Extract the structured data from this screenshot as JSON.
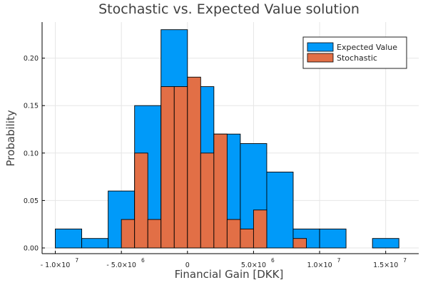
{
  "chart_data": {
    "type": "bar",
    "title": "Stochastic vs. Expected Value solution",
    "xlabel": "Financial Gain [DKK]",
    "ylabel": "Probability",
    "xlim": [
      -11000000,
      17500000
    ],
    "ylim": [
      -0.006,
      0.238
    ],
    "grid": true,
    "legend_position": "top-right",
    "x_ticks": [
      {
        "value": -10000000,
        "mantissa": "- 1.0×10",
        "exponent": "7"
      },
      {
        "value": -5000000,
        "mantissa": "- 5.0×10",
        "exponent": "6"
      },
      {
        "value": 0,
        "mantissa": "0",
        "exponent": ""
      },
      {
        "value": 5000000,
        "mantissa": "5.0×10",
        "exponent": "6"
      },
      {
        "value": 10000000,
        "mantissa": "1.0×10",
        "exponent": "7"
      },
      {
        "value": 15000000,
        "mantissa": "1.5×10",
        "exponent": "7"
      }
    ],
    "y_ticks": [
      {
        "value": 0,
        "label": "0.00"
      },
      {
        "value": 0.05,
        "label": "0.05"
      },
      {
        "value": 0.1,
        "label": "0.10"
      },
      {
        "value": 0.15,
        "label": "0.15"
      },
      {
        "value": 0.2,
        "label": "0.20"
      }
    ],
    "series": [
      {
        "name": "Expected Value",
        "color": "#009af9",
        "bin_edges": [
          -10000000,
          -8000000,
          -6000000,
          -4000000,
          -2000000,
          0,
          2000000,
          4000000,
          6000000,
          8000000,
          10000000,
          12000000,
          14000000,
          16000000
        ],
        "values": [
          0.02,
          0.01,
          0.06,
          0.15,
          0.23,
          0.17,
          0.12,
          0.11,
          0.08,
          0.02,
          0.02,
          0.0,
          0.01
        ]
      },
      {
        "name": "Stochastic",
        "color": "#e26f46",
        "bin_edges": [
          -5000000,
          -4000000,
          -3000000,
          -2000000,
          -1000000,
          0,
          1000000,
          2000000,
          3000000,
          4000000,
          5000000,
          6000000,
          7000000,
          8000000,
          9000000
        ],
        "values": [
          0.03,
          0.1,
          0.03,
          0.17,
          0.17,
          0.18,
          0.1,
          0.12,
          0.03,
          0.02,
          0.04,
          0.0,
          0.0,
          0.01
        ]
      }
    ]
  }
}
